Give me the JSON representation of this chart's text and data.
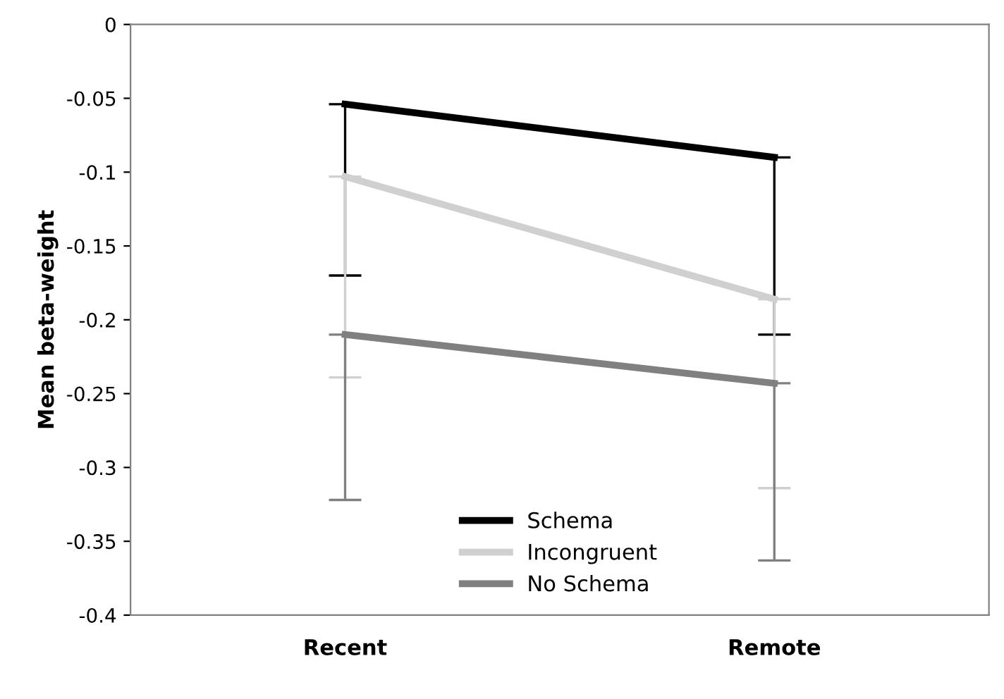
{
  "chart_data": {
    "type": "line",
    "ylabel": "Mean beta-weight",
    "categories": [
      "Recent",
      "Remote"
    ],
    "series": [
      {
        "name": "Schema",
        "color": "#000000",
        "values": [
          -0.054,
          -0.09
        ],
        "errors": [
          [
            -0.17,
            -0.054
          ],
          [
            -0.21,
            -0.09
          ]
        ]
      },
      {
        "name": "Incongruent",
        "color": "#d0d0d0",
        "values": [
          -0.103,
          -0.186
        ],
        "errors": [
          [
            -0.239,
            -0.103
          ],
          [
            -0.314,
            -0.186
          ]
        ]
      },
      {
        "name": "No Schema",
        "color": "#808080",
        "values": [
          -0.21,
          -0.243
        ],
        "errors": [
          [
            -0.322,
            -0.21
          ],
          [
            -0.363,
            -0.243
          ]
        ]
      }
    ],
    "ylim": [
      -0.4,
      0
    ],
    "yticks": [
      -0.4,
      -0.35,
      -0.3,
      -0.25,
      -0.2,
      -0.15,
      -0.1,
      -0.05,
      0
    ],
    "grid": false,
    "legend": "bottom",
    "marker": "none",
    "line_style": "solid"
  }
}
